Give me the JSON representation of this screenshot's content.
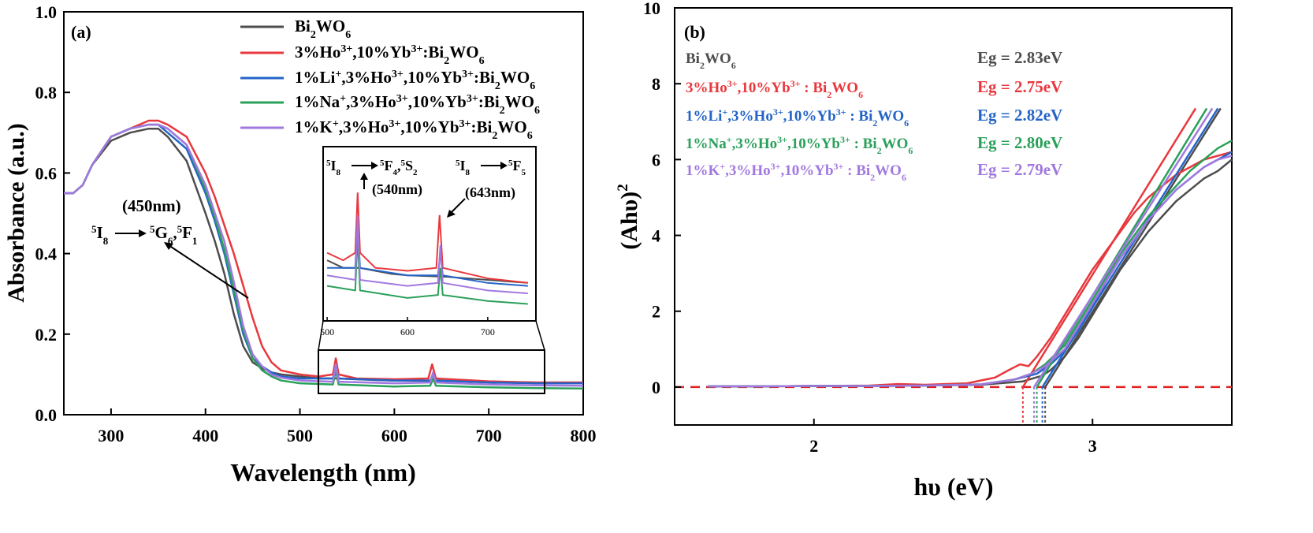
{
  "colors": {
    "bwo": "#4d4d4d",
    "ho_yb": "#e8383d",
    "li": "#2464c8",
    "na": "#2aa05a",
    "k": "#a178e0",
    "axis": "#000000",
    "baseline": "#e02020"
  },
  "chart_data": [
    {
      "type": "line",
      "panel_label": "(a)",
      "xlabel": "Wavelength (nm)",
      "ylabel": "Absorbance (a.u.)",
      "xlim": [
        250,
        800
      ],
      "ylim": [
        0.0,
        1.0
      ],
      "xticks": [
        "300",
        "400",
        "500",
        "600",
        "700",
        "800"
      ],
      "yticks": [
        "0.0",
        "0.2",
        "0.4",
        "0.6",
        "0.8",
        "1.0"
      ],
      "legend_position": "top-right",
      "grid": false,
      "series": [
        {
          "key": "bwo",
          "name_pre": "Bi",
          "name_sub": "2",
          "name_mid": "WO",
          "name_sub2": "6",
          "x": [
            250,
            260,
            270,
            280,
            300,
            320,
            340,
            350,
            360,
            380,
            400,
            410,
            420,
            430,
            440,
            450,
            460,
            470,
            480,
            500,
            520,
            540,
            560,
            580,
            600,
            650,
            700,
            750,
            800
          ],
          "y": [
            0.55,
            0.55,
            0.57,
            0.62,
            0.68,
            0.7,
            0.71,
            0.71,
            0.69,
            0.63,
            0.5,
            0.43,
            0.35,
            0.25,
            0.17,
            0.13,
            0.115,
            0.105,
            0.1,
            0.095,
            0.09,
            0.09,
            0.088,
            0.086,
            0.085,
            0.084,
            0.082,
            0.08,
            0.08
          ]
        },
        {
          "key": "ho_yb",
          "name_pre": "3%Ho",
          "name_sup": "3+",
          "name_mid": ",10%Yb",
          "name_sup2": "3+",
          "name_end": ":Bi",
          "name_sub": "2",
          "name_end2": "WO",
          "name_sub2": "6",
          "x": [
            250,
            260,
            270,
            280,
            300,
            320,
            340,
            350,
            360,
            380,
            400,
            410,
            420,
            430,
            440,
            450,
            460,
            470,
            480,
            500,
            520,
            535,
            538,
            541,
            560,
            600,
            636,
            640,
            644,
            700,
            750,
            800
          ],
          "y": [
            0.55,
            0.55,
            0.57,
            0.62,
            0.69,
            0.71,
            0.73,
            0.73,
            0.72,
            0.69,
            0.6,
            0.54,
            0.47,
            0.4,
            0.32,
            0.24,
            0.17,
            0.13,
            0.11,
            0.1,
            0.095,
            0.1,
            0.14,
            0.1,
            0.09,
            0.088,
            0.09,
            0.125,
            0.09,
            0.083,
            0.08,
            0.08
          ]
        },
        {
          "key": "li",
          "name_pre": "1%Li",
          "name_sup": "+",
          "name_mid": ",3%Ho",
          "name_sup2": "3+",
          "name_end": ",10%Yb",
          "name_sup3": "3+",
          "name_end2": ":Bi",
          "name_sub": "2",
          "name_end3": "WO",
          "name_sub2": "6",
          "x": [
            250,
            260,
            270,
            280,
            300,
            320,
            340,
            350,
            360,
            380,
            400,
            410,
            420,
            430,
            440,
            450,
            460,
            470,
            480,
            500,
            535,
            538,
            541,
            600,
            638,
            641,
            644,
            700,
            750,
            800
          ],
          "y": [
            0.55,
            0.55,
            0.57,
            0.62,
            0.69,
            0.71,
            0.72,
            0.72,
            0.7,
            0.66,
            0.55,
            0.48,
            0.4,
            0.3,
            0.2,
            0.14,
            0.12,
            0.105,
            0.095,
            0.09,
            0.09,
            0.12,
            0.09,
            0.085,
            0.085,
            0.1,
            0.085,
            0.08,
            0.078,
            0.078
          ]
        },
        {
          "key": "na",
          "name_pre": "1%Na",
          "name_sup": "+",
          "name_mid": ",3%Ho",
          "name_sup2": "3+",
          "name_end": ",10%Yb",
          "name_sup3": "3+",
          "name_end2": ":Bi",
          "name_sub": "2",
          "name_end3": "WO",
          "name_sub2": "6",
          "x": [
            250,
            260,
            270,
            280,
            300,
            320,
            340,
            350,
            360,
            380,
            400,
            410,
            420,
            430,
            440,
            450,
            460,
            470,
            480,
            500,
            535,
            538,
            541,
            600,
            638,
            641,
            644,
            700,
            750,
            800
          ],
          "y": [
            0.55,
            0.55,
            0.57,
            0.62,
            0.69,
            0.71,
            0.72,
            0.72,
            0.71,
            0.67,
            0.56,
            0.49,
            0.41,
            0.31,
            0.21,
            0.14,
            0.11,
            0.095,
            0.085,
            0.078,
            0.075,
            0.11,
            0.075,
            0.07,
            0.072,
            0.09,
            0.072,
            0.068,
            0.066,
            0.065
          ]
        },
        {
          "key": "k",
          "name_pre": "1%K",
          "name_sup": "+",
          "name_mid": ",3%Ho",
          "name_sup2": "3+",
          "name_end": ",10%Yb",
          "name_sup3": "3+",
          "name_end2": ":Bi",
          "name_sub": "2",
          "name_end3": "WO",
          "name_sub2": "6",
          "x": [
            250,
            260,
            270,
            280,
            300,
            320,
            340,
            350,
            360,
            380,
            400,
            410,
            420,
            430,
            440,
            450,
            460,
            470,
            480,
            500,
            535,
            538,
            541,
            600,
            638,
            641,
            644,
            700,
            750,
            800
          ],
          "y": [
            0.55,
            0.55,
            0.57,
            0.62,
            0.69,
            0.71,
            0.72,
            0.72,
            0.71,
            0.67,
            0.57,
            0.5,
            0.43,
            0.33,
            0.22,
            0.15,
            0.12,
            0.1,
            0.092,
            0.085,
            0.082,
            0.125,
            0.082,
            0.078,
            0.08,
            0.105,
            0.08,
            0.075,
            0.073,
            0.072
          ]
        }
      ],
      "annotations": {
        "peak_450": "(450nm)",
        "trans_450_from_sup": "5",
        "trans_450_from": "I",
        "trans_450_from_sub": "8",
        "trans_450_to_sup": "5",
        "trans_450_to": "G",
        "trans_450_to_sub": "6",
        "trans_450_to2_sup": "5",
        "trans_450_to2": "F",
        "trans_450_to2_sub": "1",
        "inset_trans_540_from_sup": "5",
        "inset_trans_540_from": "I",
        "inset_trans_540_from_sub": "8",
        "inset_trans_540_to_sup": "5",
        "inset_trans_540_to": "F",
        "inset_trans_540_to_sub": "4",
        "inset_trans_540_to2_sup": "5",
        "inset_trans_540_to2": "S",
        "inset_trans_540_to2_sub": "2",
        "peak_540": "(540nm)",
        "inset_trans_643_from_sup": "5",
        "inset_trans_643_from": "I",
        "inset_trans_643_from_sub": "8",
        "inset_trans_643_to_sup": "5",
        "inset_trans_643_to": "F",
        "inset_trans_643_to_sub": "5",
        "peak_643": "(643nm)"
      },
      "inset": {
        "xlim": [
          495,
          760
        ],
        "xticks": [
          "500",
          "600",
          "700"
        ],
        "zoom_box_xlim": [
          520,
          760
        ],
        "zoom_box_ylim": [
          0.05,
          0.16
        ]
      }
    },
    {
      "type": "line",
      "panel_label": "(b)",
      "xlabel": "hυ (eV)",
      "ylabel_main": "(Ahυ)",
      "ylabel_sup": "2",
      "xlim": [
        1.5,
        3.5
      ],
      "ylim": [
        -1.0,
        10.0
      ],
      "xticks": [
        "2",
        "3"
      ],
      "yticks": [
        "0",
        "2",
        "4",
        "6",
        "8",
        "10"
      ],
      "grid": false,
      "legend_position": "top-left",
      "baseline_y": 0,
      "series": [
        {
          "key": "bwo",
          "eg": 2.83,
          "eg_label": "Eg = 2.83eV",
          "x": [
            1.62,
            1.8,
            2.0,
            2.2,
            2.4,
            2.6,
            2.75,
            2.82,
            2.85,
            2.9,
            2.95,
            3.0,
            3.05,
            3.1,
            3.15,
            3.2,
            3.25,
            3.3,
            3.35,
            3.4,
            3.45,
            3.5
          ],
          "y": [
            0.02,
            0.02,
            0.03,
            0.03,
            0.04,
            0.06,
            0.15,
            0.3,
            0.45,
            0.8,
            1.3,
            1.9,
            2.5,
            3.1,
            3.6,
            4.1,
            4.5,
            4.9,
            5.2,
            5.5,
            5.7,
            6.0
          ],
          "fit_x": [
            2.83,
            3.46
          ],
          "fit_y": [
            0,
            7.35
          ]
        },
        {
          "key": "ho_yb",
          "eg": 2.75,
          "eg_label": "Eg = 2.75eV",
          "x": [
            1.62,
            1.8,
            2.0,
            2.2,
            2.3,
            2.4,
            2.55,
            2.65,
            2.7,
            2.74,
            2.77,
            2.8,
            2.85,
            2.9,
            2.95,
            3.0,
            3.05,
            3.1,
            3.15,
            3.2,
            3.25,
            3.3,
            3.35,
            3.4,
            3.45,
            3.5
          ],
          "y": [
            0.02,
            0.02,
            0.03,
            0.04,
            0.08,
            0.06,
            0.1,
            0.25,
            0.45,
            0.6,
            0.55,
            0.8,
            1.3,
            1.9,
            2.5,
            3.1,
            3.6,
            4.1,
            4.6,
            5.0,
            5.3,
            5.6,
            5.8,
            6.0,
            6.1,
            6.2
          ],
          "fit_x": [
            2.75,
            3.37
          ],
          "fit_y": [
            0,
            7.35
          ]
        },
        {
          "key": "li",
          "eg": 2.82,
          "eg_label": "Eg = 2.82eV",
          "x": [
            1.62,
            1.8,
            2.0,
            2.2,
            2.4,
            2.6,
            2.72,
            2.8,
            2.85,
            2.9,
            2.95,
            3.0,
            3.05,
            3.1,
            3.15,
            3.2,
            3.25,
            3.3,
            3.35,
            3.4,
            3.45,
            3.5
          ],
          "y": [
            0.02,
            0.02,
            0.03,
            0.03,
            0.04,
            0.07,
            0.2,
            0.35,
            0.6,
            0.95,
            1.5,
            2.1,
            2.8,
            3.4,
            3.9,
            4.4,
            4.8,
            5.2,
            5.5,
            5.8,
            6.0,
            6.2
          ],
          "fit_x": [
            2.82,
            3.45
          ],
          "fit_y": [
            0,
            7.35
          ]
        },
        {
          "key": "na",
          "eg": 2.8,
          "eg_label": "Eg = 2.80eV",
          "x": [
            1.62,
            1.8,
            2.0,
            2.2,
            2.4,
            2.6,
            2.72,
            2.78,
            2.83,
            2.9,
            2.95,
            3.0,
            3.05,
            3.1,
            3.15,
            3.2,
            3.25,
            3.3,
            3.35,
            3.4,
            3.45,
            3.5
          ],
          "y": [
            0.02,
            0.02,
            0.03,
            0.03,
            0.04,
            0.07,
            0.2,
            0.35,
            0.6,
            1.1,
            1.7,
            2.3,
            2.9,
            3.5,
            4.0,
            4.5,
            4.9,
            5.3,
            5.7,
            6.0,
            6.3,
            6.5
          ],
          "fit_x": [
            2.8,
            3.41
          ],
          "fit_y": [
            0,
            7.35
          ]
        },
        {
          "key": "k",
          "eg": 2.79,
          "eg_label": "Eg = 2.79eV",
          "x": [
            1.62,
            1.8,
            2.0,
            2.2,
            2.4,
            2.6,
            2.72,
            2.78,
            2.83,
            2.9,
            2.95,
            3.0,
            3.05,
            3.1,
            3.15,
            3.2,
            3.25,
            3.3,
            3.35,
            3.4,
            3.45,
            3.5
          ],
          "y": [
            0.02,
            0.02,
            0.03,
            0.03,
            0.04,
            0.07,
            0.2,
            0.35,
            0.55,
            1.0,
            1.6,
            2.2,
            2.8,
            3.4,
            3.9,
            4.4,
            4.8,
            5.2,
            5.5,
            5.8,
            6.0,
            6.1
          ],
          "fit_x": [
            2.79,
            3.43
          ],
          "fit_y": [
            0,
            7.35
          ]
        }
      ],
      "legend": [
        {
          "key": "bwo",
          "parts": [
            [
              "Bi",
              ""
            ],
            [
              "2",
              "sub"
            ],
            [
              "WO",
              ""
            ],
            [
              "6",
              "sub"
            ]
          ]
        },
        {
          "key": "ho_yb",
          "parts": [
            [
              "3%Ho",
              ""
            ],
            [
              "3+",
              "sup"
            ],
            [
              ",10%Yb",
              ""
            ],
            [
              "3+",
              "sup"
            ],
            [
              " : Bi",
              ""
            ],
            [
              "2",
              "sub"
            ],
            [
              "WO",
              ""
            ],
            [
              "6",
              "sub"
            ]
          ]
        },
        {
          "key": "li",
          "parts": [
            [
              "1%Li",
              ""
            ],
            [
              "+",
              "sup"
            ],
            [
              ",3%Ho",
              ""
            ],
            [
              "3+",
              "sup"
            ],
            [
              ",10%Yb",
              ""
            ],
            [
              "3+",
              "sup"
            ],
            [
              " : Bi",
              ""
            ],
            [
              "2",
              "sub"
            ],
            [
              "WO",
              ""
            ],
            [
              "6",
              "sub"
            ]
          ]
        },
        {
          "key": "na",
          "parts": [
            [
              "1%Na",
              ""
            ],
            [
              "+",
              "sup"
            ],
            [
              ",3%Ho",
              ""
            ],
            [
              "3+",
              "sup"
            ],
            [
              ",10%Yb",
              ""
            ],
            [
              "3+",
              "sup"
            ],
            [
              " : Bi",
              ""
            ],
            [
              "2",
              "sub"
            ],
            [
              "WO",
              ""
            ],
            [
              "6",
              "sub"
            ]
          ]
        },
        {
          "key": "k",
          "parts": [
            [
              "1%K",
              ""
            ],
            [
              "+",
              "sup"
            ],
            [
              ",3%Ho",
              ""
            ],
            [
              "3+",
              "sup"
            ],
            [
              ",10%Yb",
              ""
            ],
            [
              "3+",
              "sup"
            ],
            [
              " : Bi",
              ""
            ],
            [
              "2",
              "sub"
            ],
            [
              "WO",
              ""
            ],
            [
              "6",
              "sub"
            ]
          ]
        }
      ]
    }
  ]
}
